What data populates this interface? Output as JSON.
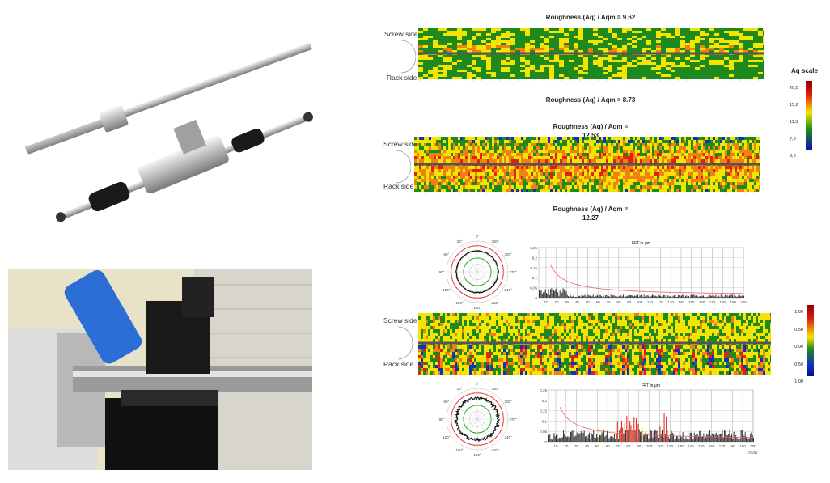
{
  "heatmap1": {
    "title_top": "Roughness (Aq) / Aqm = 9.62",
    "title_bottom": "Roughness (Aq) / Aqm = 8.73",
    "screw": "Screw side",
    "rack": "Rack side"
  },
  "heatmap2": {
    "title_top_1": "Roughness (Aq) / Aqm =",
    "title_top_2": "12.53",
    "title_bottom_1": "Roughness (Aq) / Aqm =",
    "title_bottom_2": "12.27",
    "screw": "Screw side",
    "rack": "Rack side"
  },
  "heatmap3": {
    "screw": "Screw side",
    "rack": "Rack side"
  },
  "aq_scale": {
    "title": "Aq scale",
    "ticks": [
      "20,0",
      "15,8",
      "11,5",
      "7,3",
      "3,0"
    ]
  },
  "dev_scale": {
    "ticks": [
      "1,00",
      "0,50",
      "0,00",
      "-0,50",
      "-1,00"
    ]
  },
  "polar": {
    "angles": [
      "0°",
      "30°",
      "60°",
      "90°",
      "120°",
      "150°",
      "180°",
      "210°",
      "240°",
      "270°",
      "300°",
      "330°"
    ]
  },
  "fft1": {
    "title": "FFT in µm",
    "yticks": [
      "0,25",
      "0,2",
      "0,15",
      "0,1",
      "0,05",
      "0"
    ],
    "xticks": [
      "10",
      "20",
      "30",
      "40",
      "50",
      "60",
      "70",
      "80",
      "90",
      "100",
      "110",
      "120",
      "130",
      "140",
      "150",
      "160",
      "170",
      "180",
      "190",
      "200"
    ]
  },
  "fft2": {
    "title": "FFT in µm",
    "yticks": [
      "0,25",
      "0,2",
      "0,15",
      "0,1",
      "0,05",
      "0"
    ],
    "xticks": [
      "10",
      "20",
      "30",
      "40",
      "50",
      "60",
      "70",
      "80",
      "90",
      "100",
      "110",
      "120",
      "130",
      "140",
      "150",
      "160",
      "170",
      "180",
      "190",
      "200"
    ],
    "xlabel": "Order"
  },
  "colors": {
    "green": "#1e8a1e",
    "yellow": "#f4e400",
    "red": "#e02010",
    "blue": "#1030c0",
    "limit": "#f06060"
  }
}
